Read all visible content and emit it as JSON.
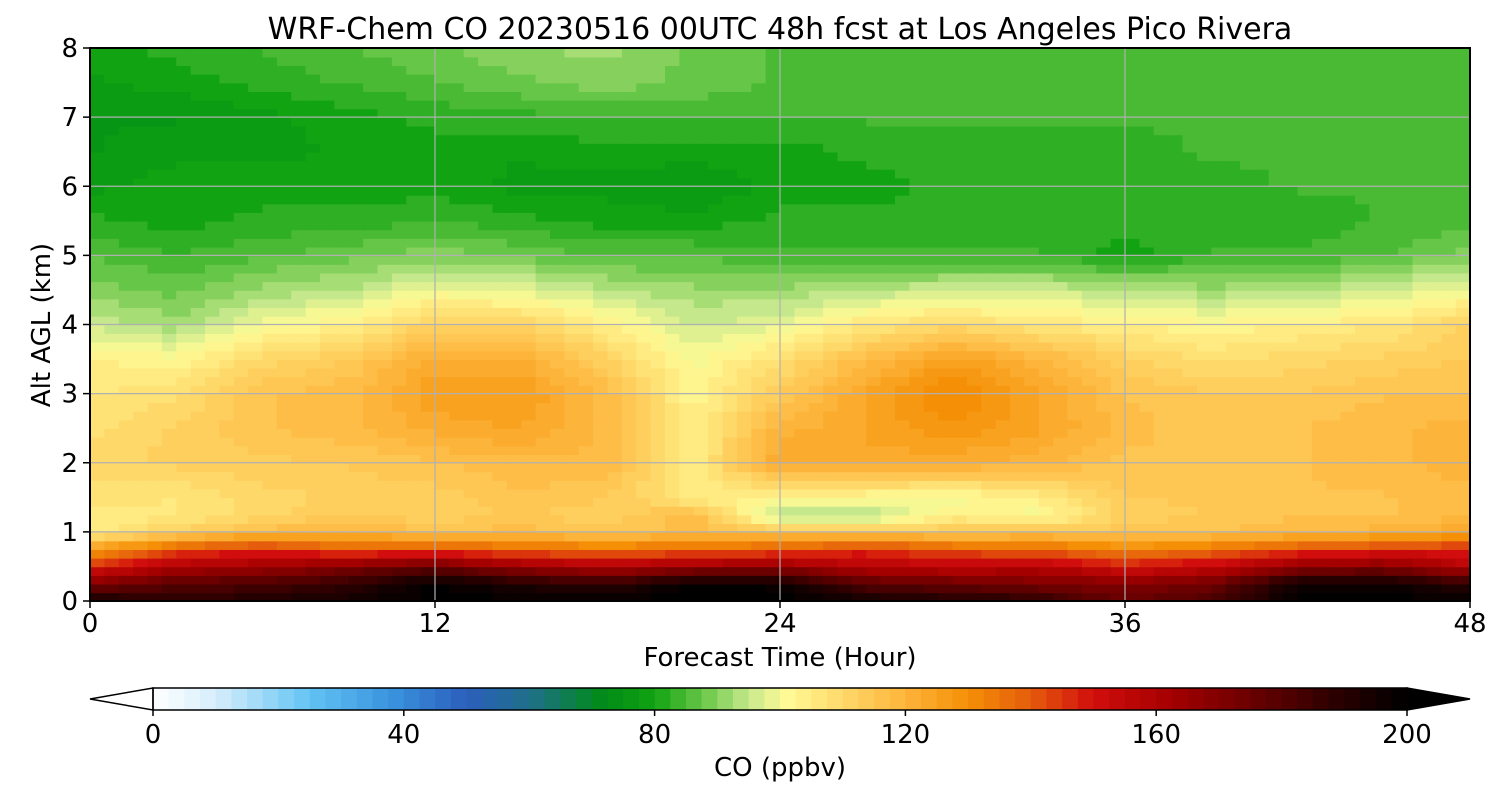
{
  "chart_data": {
    "type": "heatmap",
    "title": "WRF-Chem CO  20230516 00UTC 48h fcst at Los Angeles Pico Rivera",
    "xlabel": "Forecast Time (Hour)",
    "ylabel": "Alt AGL (km)",
    "xlim": [
      0,
      48
    ],
    "ylim": [
      0,
      8
    ],
    "xticks": [
      0,
      12,
      24,
      36,
      48
    ],
    "yticks": [
      0,
      1,
      2,
      3,
      4,
      5,
      6,
      7,
      8
    ],
    "grid": true,
    "colorbar": {
      "label": "CO  (ppbv)",
      "vmin": 0,
      "vmax": 200,
      "ticks": [
        0,
        40,
        80,
        120,
        160,
        200
      ],
      "extend": "both",
      "position": "bottom",
      "stops": [
        {
          "v": 0,
          "c": "#ffffff"
        },
        {
          "v": 10,
          "c": "#d6eefb"
        },
        {
          "v": 25,
          "c": "#62c3f3"
        },
        {
          "v": 38,
          "c": "#3a93de"
        },
        {
          "v": 50,
          "c": "#2c5fbd"
        },
        {
          "v": 60,
          "c": "#1f6f8a"
        },
        {
          "v": 72,
          "c": "#008c16"
        },
        {
          "v": 80,
          "c": "#12a312"
        },
        {
          "v": 88,
          "c": "#6cc84a"
        },
        {
          "v": 95,
          "c": "#c6e88c"
        },
        {
          "v": 101,
          "c": "#fffb96"
        },
        {
          "v": 110,
          "c": "#ffd86a"
        },
        {
          "v": 120,
          "c": "#fdb43a"
        },
        {
          "v": 130,
          "c": "#f58f06"
        },
        {
          "v": 140,
          "c": "#e45c0c"
        },
        {
          "v": 150,
          "c": "#d20d0d"
        },
        {
          "v": 162,
          "c": "#a60000"
        },
        {
          "v": 175,
          "c": "#6b0000"
        },
        {
          "v": 188,
          "c": "#2e0000"
        },
        {
          "v": 200,
          "c": "#000000"
        }
      ]
    },
    "x": [
      0,
      3,
      6,
      9,
      12,
      15,
      18,
      21,
      24,
      27,
      30,
      33,
      36,
      39,
      42,
      45,
      48
    ],
    "y": [
      0,
      0.25,
      0.5,
      0.75,
      1,
      1.25,
      1.5,
      2,
      2.5,
      3,
      3.5,
      4,
      4.5,
      5,
      5.5,
      6,
      6.5,
      7,
      7.5,
      8
    ],
    "z": [
      [
        196,
        190,
        192,
        196,
        200,
        200,
        200,
        200,
        200,
        196,
        192,
        190,
        175,
        182,
        200,
        200,
        200
      ],
      [
        170,
        180,
        182,
        188,
        200,
        192,
        188,
        200,
        198,
        180,
        176,
        172,
        170,
        174,
        196,
        198,
        188
      ],
      [
        148,
        160,
        164,
        170,
        176,
        165,
        160,
        165,
        166,
        158,
        156,
        158,
        150,
        155,
        168,
        170,
        158
      ],
      [
        126,
        142,
        147,
        140,
        142,
        138,
        136,
        138,
        140,
        146,
        140,
        138,
        132,
        136,
        142,
        146,
        148
      ],
      [
        104,
        112,
        118,
        120,
        116,
        118,
        114,
        118,
        116,
        115,
        114,
        116,
        115,
        116,
        118,
        120,
        124
      ],
      [
        104,
        106,
        110,
        114,
        112,
        114,
        112,
        118,
        93,
        92,
        104,
        100,
        112,
        114,
        116,
        116,
        118
      ],
      [
        108,
        106,
        110,
        112,
        112,
        116,
        114,
        105,
        102,
        101,
        100,
        104,
        114,
        114,
        116,
        116,
        118
      ],
      [
        110,
        112,
        113,
        114,
        116,
        118,
        118,
        104,
        124,
        123,
        122,
        120,
        115,
        116,
        116,
        118,
        120
      ],
      [
        108,
        112,
        116,
        118,
        122,
        124,
        118,
        104,
        120,
        124,
        128,
        124,
        118,
        114,
        116,
        118,
        120
      ],
      [
        106,
        108,
        116,
        118,
        126,
        126,
        118,
        102,
        114,
        124,
        132,
        124,
        116,
        114,
        114,
        116,
        116
      ],
      [
        104,
        102,
        110,
        114,
        122,
        122,
        112,
        100,
        108,
        118,
        126,
        120,
        112,
        108,
        110,
        112,
        114
      ],
      [
        96,
        92,
        100,
        104,
        112,
        112,
        104,
        96,
        98,
        106,
        110,
        106,
        104,
        102,
        104,
        106,
        112
      ],
      [
        90,
        88,
        92,
        94,
        100,
        98,
        94,
        92,
        92,
        94,
        96,
        96,
        94,
        92,
        94,
        96,
        100
      ],
      [
        86,
        84,
        86,
        88,
        90,
        88,
        86,
        86,
        84,
        84,
        84,
        84,
        80,
        84,
        84,
        86,
        90
      ],
      [
        82,
        80,
        82,
        82,
        84,
        82,
        80,
        80,
        82,
        82,
        82,
        82,
        82,
        82,
        82,
        84,
        85
      ],
      [
        78,
        80,
        80,
        80,
        80,
        78,
        78,
        76,
        80,
        80,
        82,
        82,
        83,
        83,
        84,
        84,
        85
      ],
      [
        76,
        78,
        78,
        79,
        80,
        79,
        80,
        80,
        80,
        82,
        82,
        83,
        83,
        84,
        84,
        84,
        85
      ],
      [
        76,
        76,
        78,
        80,
        82,
        83,
        84,
        84,
        84,
        84,
        84,
        84,
        84,
        84,
        84,
        84,
        84
      ],
      [
        78,
        80,
        82,
        84,
        86,
        88,
        90,
        88,
        86,
        86,
        86,
        86,
        86,
        86,
        86,
        86,
        86
      ],
      [
        80,
        82,
        84,
        86,
        88,
        91,
        92,
        88,
        86,
        86,
        86,
        86,
        86,
        86,
        86,
        86,
        86
      ]
    ]
  }
}
